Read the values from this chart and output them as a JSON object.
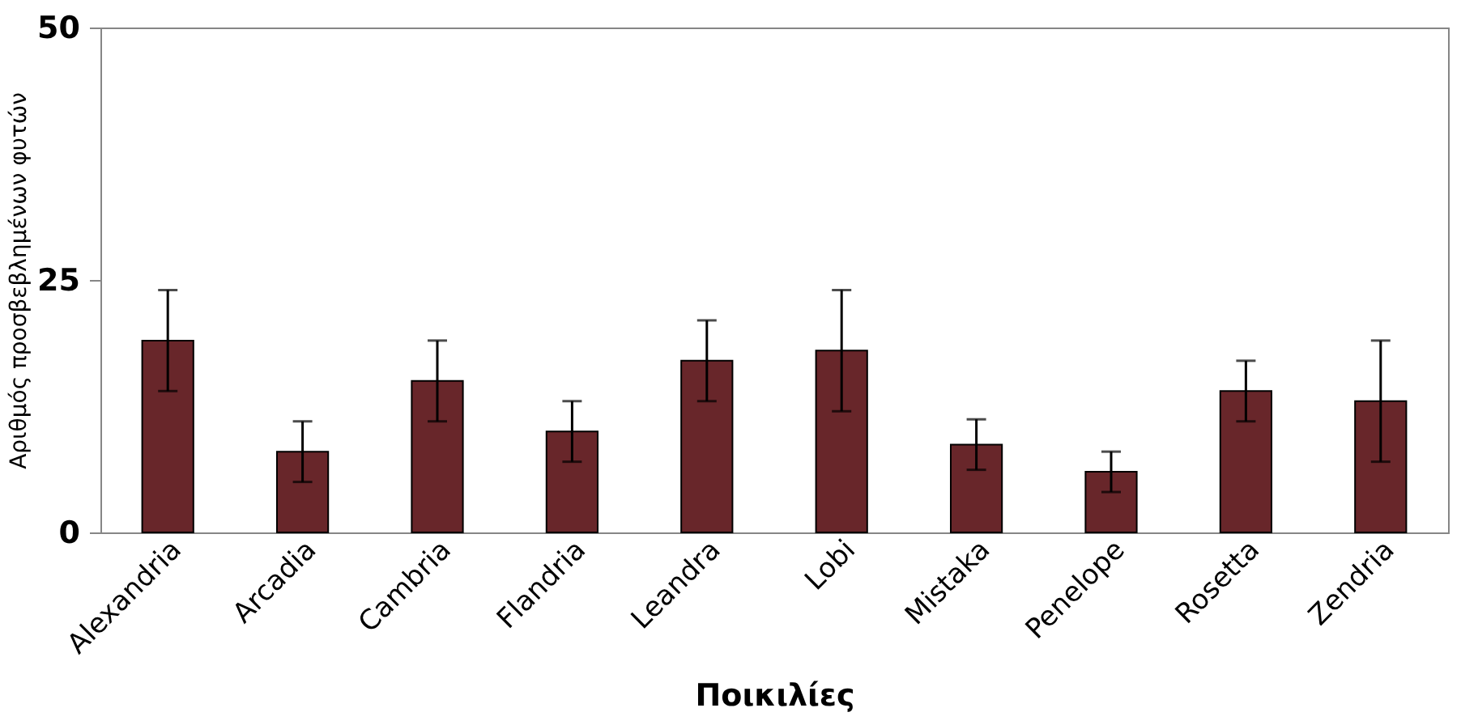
{
  "chart_data": {
    "type": "bar",
    "xlabel": "Ποικιλίες",
    "ylabel": "Αριθμός προσβεβλημένων φυτών",
    "categories": [
      "Alexandria",
      "Arcadia",
      "Cambria",
      "Flandria",
      "Leandra",
      "Lobi",
      "Mistaka",
      "Penelope",
      "Rosetta",
      "Zendria"
    ],
    "values": [
      19,
      8,
      15,
      10,
      17,
      18,
      8.7,
      6,
      14,
      13
    ],
    "errors": [
      5,
      3,
      4,
      3,
      4,
      6,
      2.5,
      2,
      3,
      6
    ],
    "color": "#68262a",
    "ylim": [
      0,
      50
    ],
    "yticks": [
      0,
      25,
      50
    ],
    "grid": false
  }
}
